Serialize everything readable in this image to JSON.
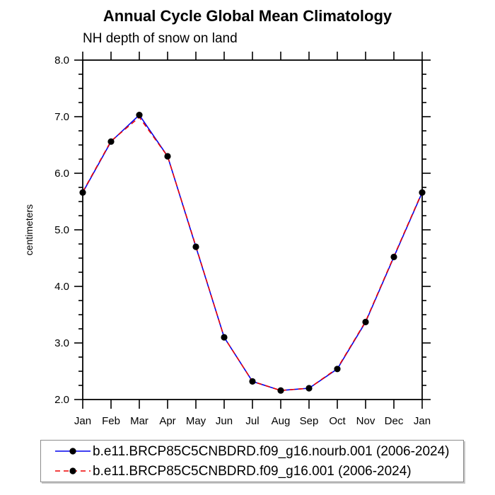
{
  "title": "Annual Cycle Global Mean Climatology",
  "subtitle": "NH depth of snow on land",
  "chart_data": {
    "type": "line",
    "categories": [
      "Jan",
      "Feb",
      "Mar",
      "Apr",
      "May",
      "Jun",
      "Jul",
      "Aug",
      "Sep",
      "Oct",
      "Nov",
      "Dec",
      "Jan"
    ],
    "series": [
      {
        "name": "b.e11.BRCP85C5CNBDRD.f09_g16.nourb.001 (2006-2024)",
        "color": "#0000ee",
        "line_style": "solid",
        "marker": "filled-circle",
        "marker_color": "#000000",
        "values": [
          5.66,
          6.56,
          7.03,
          6.3,
          4.7,
          3.1,
          2.32,
          2.16,
          2.2,
          2.54,
          3.37,
          4.52,
          5.66
        ]
      },
      {
        "name": "b.e11.BRCP85C5CNBDRD.f09_g16.001 (2006-2024)",
        "color": "#ee0000",
        "line_style": "dashed",
        "marker": "filled-circle",
        "marker_color": "#000000",
        "values": [
          5.67,
          6.57,
          6.99,
          6.3,
          4.71,
          3.1,
          2.32,
          2.16,
          2.2,
          2.55,
          3.38,
          4.53,
          5.67
        ]
      }
    ],
    "xlabel": "",
    "ylabel": "centimeters",
    "ylim": [
      2.0,
      8.0
    ],
    "ytick_values": [
      2.0,
      3.0,
      4.0,
      5.0,
      6.0,
      7.0,
      8.0
    ],
    "ytick_labels": [
      "2.0",
      "3.0",
      "4.0",
      "5.0",
      "6.0",
      "7.0",
      "8.0"
    ],
    "y_minor_step": 0.25,
    "grid": false,
    "legend_position": "bottom",
    "axis_color": "#000000"
  }
}
